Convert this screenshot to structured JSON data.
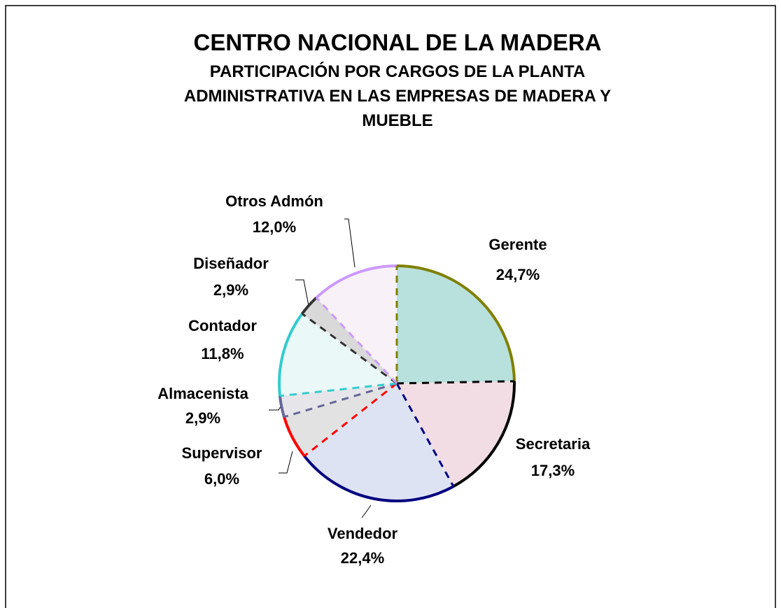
{
  "chart_data": {
    "type": "pie",
    "title": "CENTRO NACIONAL DE LA MADERA",
    "subtitle": [
      "PARTICIPACIÓN POR CARGOS DE LA PLANTA",
      "ADMINISTRATIVA EN LAS EMPRESAS DE MADERA Y",
      "MUEBLE"
    ],
    "categories": [
      "Gerente",
      "Secretaria",
      "Vendedor",
      "Supervisor",
      "Almacenista",
      "Contador",
      "Diseñador",
      "Otros Admón"
    ],
    "values": [
      24.7,
      17.3,
      22.4,
      6.0,
      2.9,
      11.8,
      2.9,
      12.0
    ],
    "value_labels": [
      "24,7%",
      "17,3%",
      "22,4%",
      "6,0%",
      "2,9%",
      "11,8%",
      "2,9%",
      "12,0%"
    ],
    "colors": [
      "#b8e0dc",
      "#f2dde4",
      "#dde3f3",
      "#e2e2e2",
      "#e6e6ea",
      "#eaf8f8",
      "#d9d9d9",
      "#f8f2f8"
    ],
    "edge_colors": [
      "#808000",
      "#000000",
      "#000080",
      "#ff0000",
      "#666699",
      "#33cccc",
      "#333333",
      "#cc99ff"
    ]
  }
}
